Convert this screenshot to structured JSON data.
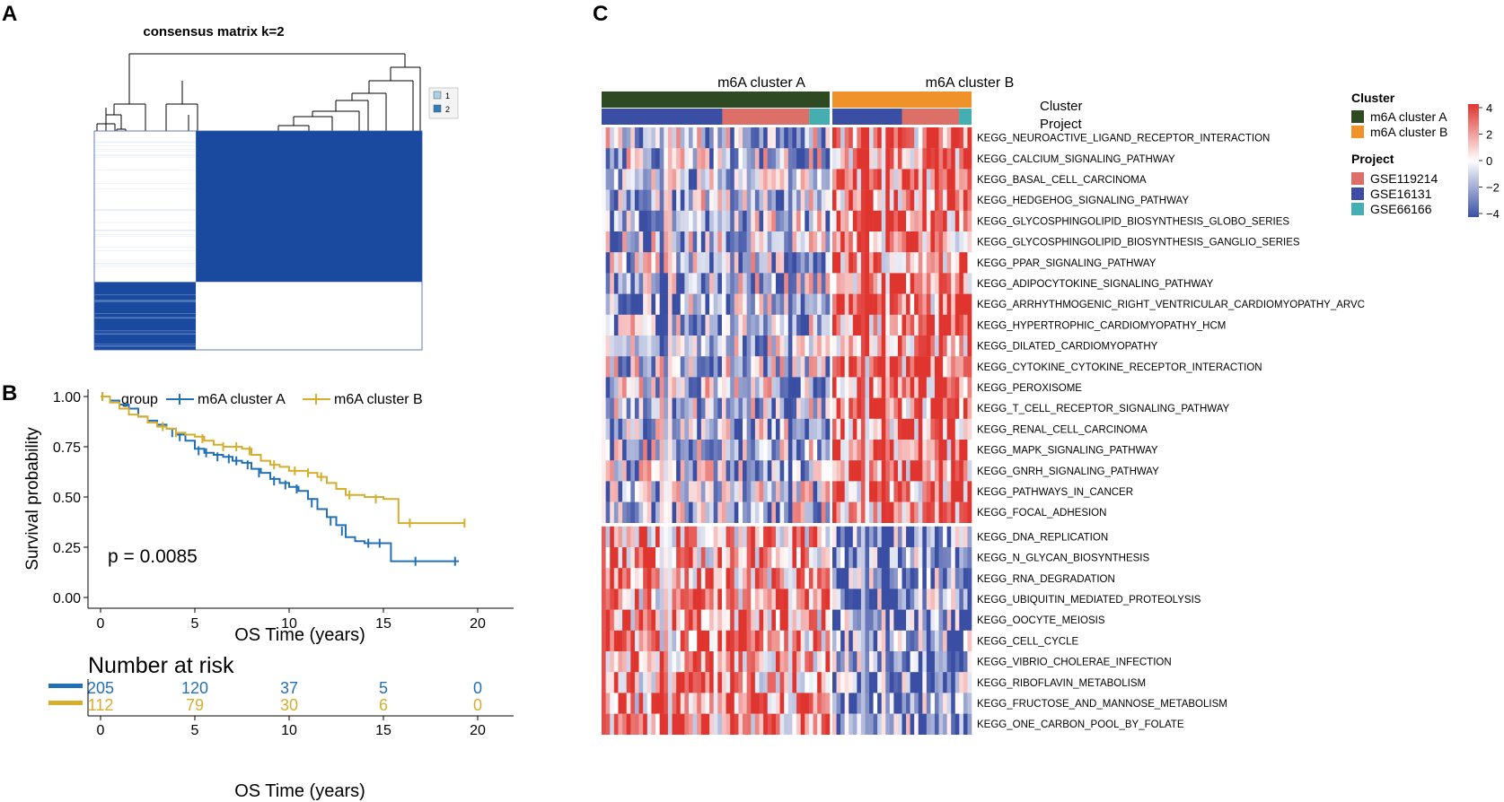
{
  "panels": {
    "a": {
      "letter": "A"
    },
    "b": {
      "letter": "B"
    },
    "c": {
      "letter": "C"
    }
  },
  "colors": {
    "cluster_a": "#2d4a22",
    "cluster_b": "#f0922a",
    "km_a": "#2371b5",
    "km_b": "#d6ae2e",
    "consensus_dark": "#1a4aa0",
    "consensus_light": "#a8d0e6",
    "consensus_mid": "#2f7fb8",
    "gse119214": "#dc7068",
    "gse16131": "#3a4fa4",
    "gse66166": "#45aeb0",
    "heat_high": "#e0342f",
    "heat_low": "#3a4fa4"
  },
  "chart_data": [
    {
      "type": "heatmap",
      "panel": "A",
      "title": "consensus matrix k=2",
      "legend": {
        "entries": [
          "1",
          "2"
        ],
        "position": "right"
      },
      "clusters": [
        {
          "name": "2",
          "size_fraction": 0.31
        },
        {
          "name": "1",
          "size_fraction": 0.69
        }
      ],
      "values": [
        [
          0,
          1
        ],
        [
          1,
          0
        ]
      ],
      "value_range": [
        0,
        1
      ]
    },
    {
      "type": "line",
      "panel": "B",
      "subtype": "kaplan-meier",
      "legend": {
        "title": "group",
        "entries": [
          "m6A cluster A",
          "m6A cluster B"
        ],
        "position": "top"
      },
      "xlabel": "OS Time (years)",
      "ylabel": "Survival probability",
      "xlim": [
        0,
        20
      ],
      "ylim": [
        0,
        1
      ],
      "xticks": [
        "0",
        "5",
        "10",
        "15",
        "20"
      ],
      "yticks": [
        "0.00",
        "0.25",
        "0.50",
        "0.75",
        "1.00"
      ],
      "annotation": "p = 0.0085",
      "series": [
        {
          "name": "m6A cluster A",
          "points": [
            [
              0,
              1.0
            ],
            [
              0.5,
              0.98
            ],
            [
              1,
              0.96
            ],
            [
              1.5,
              0.94
            ],
            [
              2,
              0.9
            ],
            [
              2.5,
              0.88
            ],
            [
              3,
              0.86
            ],
            [
              3.5,
              0.84
            ],
            [
              4,
              0.81
            ],
            [
              4.5,
              0.78
            ],
            [
              5,
              0.74
            ],
            [
              5.5,
              0.72
            ],
            [
              6,
              0.71
            ],
            [
              6.5,
              0.7
            ],
            [
              7,
              0.68
            ],
            [
              7.5,
              0.67
            ],
            [
              8,
              0.64
            ],
            [
              8.5,
              0.62
            ],
            [
              9,
              0.59
            ],
            [
              9.5,
              0.57
            ],
            [
              10,
              0.55
            ],
            [
              10.5,
              0.53
            ],
            [
              11,
              0.49
            ],
            [
              11.5,
              0.44
            ],
            [
              12,
              0.4
            ],
            [
              12.5,
              0.36
            ],
            [
              13,
              0.3
            ],
            [
              13.5,
              0.28
            ],
            [
              14,
              0.27
            ],
            [
              15,
              0.27
            ],
            [
              15.4,
              0.27
            ],
            [
              15.4,
              0.18
            ],
            [
              19,
              0.18
            ]
          ],
          "censor": [
            [
              0.1,
              1.0
            ],
            [
              3.8,
              0.82
            ],
            [
              4.2,
              0.8
            ],
            [
              5.2,
              0.73
            ],
            [
              5.6,
              0.72
            ],
            [
              6.2,
              0.7
            ],
            [
              6.8,
              0.69
            ],
            [
              7.2,
              0.68
            ],
            [
              7.8,
              0.66
            ],
            [
              8.4,
              0.62
            ],
            [
              9.2,
              0.58
            ],
            [
              9.8,
              0.56
            ],
            [
              10.4,
              0.54
            ],
            [
              11.2,
              0.47
            ],
            [
              12.2,
              0.38
            ],
            [
              12.8,
              0.33
            ],
            [
              14.2,
              0.27
            ],
            [
              14.8,
              0.27
            ],
            [
              16.7,
              0.18
            ],
            [
              18.8,
              0.18
            ]
          ]
        },
        {
          "name": "m6A cluster B",
          "points": [
            [
              0,
              1.0
            ],
            [
              0.5,
              0.97
            ],
            [
              1,
              0.94
            ],
            [
              1.5,
              0.91
            ],
            [
              2,
              0.9
            ],
            [
              2.5,
              0.87
            ],
            [
              3,
              0.85
            ],
            [
              3.5,
              0.84
            ],
            [
              4,
              0.82
            ],
            [
              4.5,
              0.81
            ],
            [
              5,
              0.8
            ],
            [
              5.5,
              0.78
            ],
            [
              6,
              0.76
            ],
            [
              6.5,
              0.75
            ],
            [
              7,
              0.75
            ],
            [
              7.5,
              0.74
            ],
            [
              8,
              0.71
            ],
            [
              8.5,
              0.68
            ],
            [
              9,
              0.66
            ],
            [
              9.5,
              0.65
            ],
            [
              10,
              0.63
            ],
            [
              11,
              0.62
            ],
            [
              11.5,
              0.6
            ],
            [
              12,
              0.57
            ],
            [
              12.5,
              0.54
            ],
            [
              13,
              0.51
            ],
            [
              14,
              0.5
            ],
            [
              15,
              0.49
            ],
            [
              15.8,
              0.49
            ],
            [
              15.8,
              0.37
            ],
            [
              19.3,
              0.37
            ]
          ],
          "censor": [
            [
              0.1,
              1.0
            ],
            [
              3.3,
              0.85
            ],
            [
              4.0,
              0.82
            ],
            [
              5.4,
              0.79
            ],
            [
              6.5,
              0.75
            ],
            [
              7.2,
              0.75
            ],
            [
              7.9,
              0.73
            ],
            [
              9.2,
              0.66
            ],
            [
              10.3,
              0.63
            ],
            [
              11.0,
              0.62
            ],
            [
              11.7,
              0.6
            ],
            [
              13.2,
              0.51
            ],
            [
              14.6,
              0.49
            ],
            [
              16.4,
              0.37
            ],
            [
              19.3,
              0.37
            ]
          ]
        }
      ]
    },
    {
      "type": "table",
      "panel": "B",
      "title": "Number at risk",
      "xlabel": "OS Time (years)",
      "xticks": [
        "0",
        "5",
        "10",
        "15",
        "20"
      ],
      "rows": [
        {
          "name": "m6A cluster A",
          "values": [
            "205",
            "120",
            "37",
            "5",
            "0"
          ]
        },
        {
          "name": "m6A cluster B",
          "values": [
            "112",
            "79",
            "30",
            "6",
            "0"
          ]
        }
      ]
    },
    {
      "type": "heatmap",
      "panel": "C",
      "column_groups": [
        {
          "name": "m6A cluster A",
          "fraction": 0.62
        },
        {
          "name": "m6A cluster B",
          "fraction": 0.38
        }
      ],
      "annotation_rows": [
        "Cluster",
        "Project"
      ],
      "project_segments": [
        [
          {
            "name": "GSE16131",
            "fraction": 0.53
          },
          {
            "name": "GSE119214",
            "fraction": 0.38
          },
          {
            "name": "GSE66166",
            "fraction": 0.09
          }
        ],
        [
          {
            "name": "GSE16131",
            "fraction": 0.5
          },
          {
            "name": "GSE119214",
            "fraction": 0.41
          },
          {
            "name": "GSE66166",
            "fraction": 0.09
          }
        ]
      ],
      "legend": {
        "cluster_title": "Cluster",
        "cluster_entries": [
          "m6A cluster A",
          "m6A cluster B"
        ],
        "project_title": "Project",
        "project_entries": [
          "GSE119214",
          "GSE16131",
          "GSE66166"
        ],
        "scale_ticks": [
          "4",
          "2",
          "0",
          "−2",
          "−4"
        ],
        "scale_range": [
          -4,
          4
        ]
      },
      "row_groups": [
        {
          "group_mean": [
            -0.3,
            0.6
          ],
          "rows": [
            "KEGG_NEUROACTIVE_LIGAND_RECEPTOR_INTERACTION",
            "KEGG_CALCIUM_SIGNALING_PATHWAY",
            "KEGG_BASAL_CELL_CARCINOMA",
            "KEGG_HEDGEHOG_SIGNALING_PATHWAY",
            "KEGG_GLYCOSPHINGOLIPID_BIOSYNTHESIS_GLOBO_SERIES",
            "KEGG_GLYCOSPHINGOLIPID_BIOSYNTHESIS_GANGLIO_SERIES",
            "KEGG_PPAR_SIGNALING_PATHWAY",
            "KEGG_ADIPOCYTOKINE_SIGNALING_PATHWAY",
            "KEGG_ARRHYTHMOGENIC_RIGHT_VENTRICULAR_CARDIOMYOPATHY_ARVC",
            "KEGG_HYPERTROPHIC_CARDIOMYOPATHY_HCM",
            "KEGG_DILATED_CARDIOMYOPATHY",
            "KEGG_CYTOKINE_CYTOKINE_RECEPTOR_INTERACTION",
            "KEGG_PEROXISOME",
            "KEGG_T_CELL_RECEPTOR_SIGNALING_PATHWAY",
            "KEGG_RENAL_CELL_CARCINOMA",
            "KEGG_MAPK_SIGNALING_PATHWAY",
            "KEGG_GNRH_SIGNALING_PATHWAY",
            "KEGG_PATHWAYS_IN_CANCER",
            "KEGG_FOCAL_ADHESION"
          ]
        },
        {
          "group_mean": [
            0.5,
            -0.6
          ],
          "rows": [
            "KEGG_DNA_REPLICATION",
            "KEGG_N_GLYCAN_BIOSYNTHESIS",
            "KEGG_RNA_DEGRADATION",
            "KEGG_UBIQUITIN_MEDIATED_PROTEOLYSIS",
            "KEGG_OOCYTE_MEIOSIS",
            "KEGG_CELL_CYCLE",
            "KEGG_VIBRIO_CHOLERAE_INFECTION",
            "KEGG_RIBOFLAVIN_METABOLISM",
            "KEGG_FRUCTOSE_AND_MANNOSE_METABOLISM",
            "KEGG_ONE_CARBON_POOL_BY_FOLATE"
          ]
        }
      ]
    }
  ]
}
